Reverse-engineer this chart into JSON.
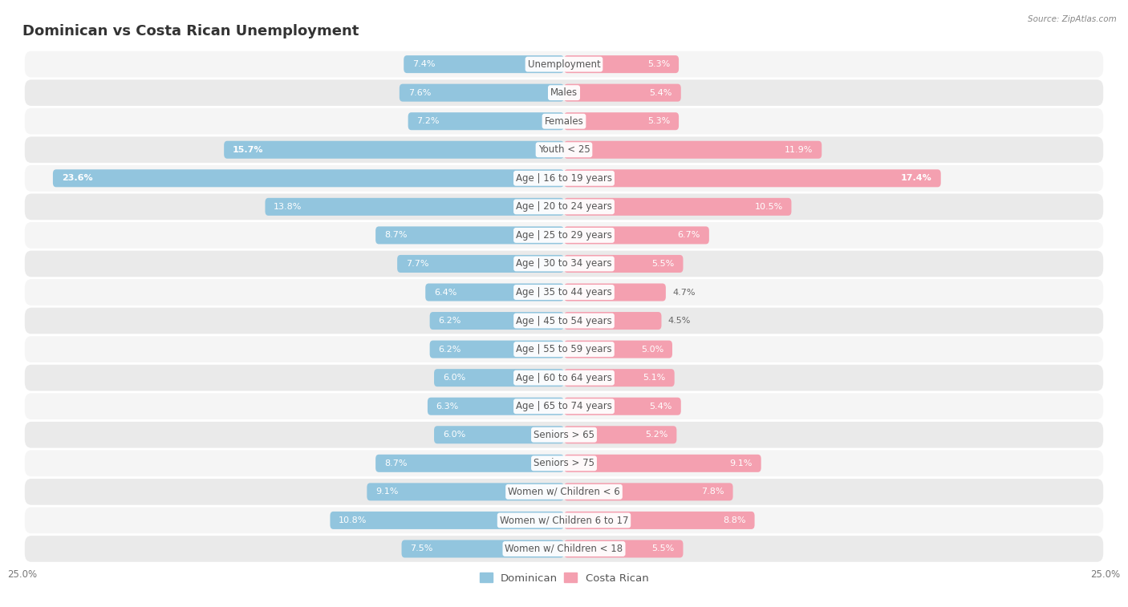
{
  "title": "Dominican vs Costa Rican Unemployment",
  "source": "Source: ZipAtlas.com",
  "categories": [
    "Unemployment",
    "Males",
    "Females",
    "Youth < 25",
    "Age | 16 to 19 years",
    "Age | 20 to 24 years",
    "Age | 25 to 29 years",
    "Age | 30 to 34 years",
    "Age | 35 to 44 years",
    "Age | 45 to 54 years",
    "Age | 55 to 59 years",
    "Age | 60 to 64 years",
    "Age | 65 to 74 years",
    "Seniors > 65",
    "Seniors > 75",
    "Women w/ Children < 6",
    "Women w/ Children 6 to 17",
    "Women w/ Children < 18"
  ],
  "dominican": [
    7.4,
    7.6,
    7.2,
    15.7,
    23.6,
    13.8,
    8.7,
    7.7,
    6.4,
    6.2,
    6.2,
    6.0,
    6.3,
    6.0,
    8.7,
    9.1,
    10.8,
    7.5
  ],
  "costa_rican": [
    5.3,
    5.4,
    5.3,
    11.9,
    17.4,
    10.5,
    6.7,
    5.5,
    4.7,
    4.5,
    5.0,
    5.1,
    5.4,
    5.2,
    9.1,
    7.8,
    8.8,
    5.5
  ],
  "dominican_color": "#92c5de",
  "costa_rican_color": "#f4a0b0",
  "dominican_color_dark": "#5b9dc0",
  "costa_rican_color_dark": "#e06080",
  "bar_height": 0.62,
  "xlim": 25,
  "background_color": "#ffffff",
  "row_bg_odd": "#f5f5f5",
  "row_bg_even": "#eaeaea",
  "title_fontsize": 13,
  "label_fontsize": 8.5,
  "value_fontsize": 8,
  "legend_fontsize": 9.5,
  "axis_label_fontsize": 8.5
}
